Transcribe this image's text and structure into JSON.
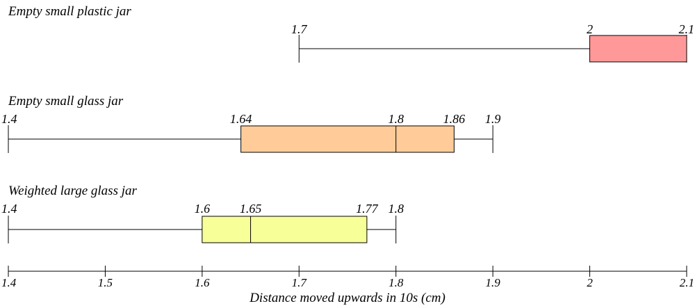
{
  "chart_data": {
    "type": "boxplot",
    "xlabel": "Distance moved upwards in 10s (cm)",
    "xlim": [
      1.4,
      2.1
    ],
    "xticks": [
      1.4,
      1.5,
      1.6,
      1.7,
      1.8,
      1.9,
      2,
      2.1
    ],
    "tick_labels": [
      "1.4",
      "1.5",
      "1.6",
      "1.7",
      "1.8",
      "1.9",
      "2",
      "2.1"
    ],
    "grid": false,
    "series": [
      {
        "name": "Empty small plastic jar",
        "min": 1.7,
        "q1": 2,
        "median": 2.1,
        "q3": 2.1,
        "max": 2.1,
        "labels": [
          "1.7",
          "2",
          "2.1"
        ],
        "color": "#ff9999"
      },
      {
        "name": "Empty small glass jar",
        "min": 1.4,
        "q1": 1.64,
        "median": 1.8,
        "q3": 1.86,
        "max": 1.9,
        "labels": [
          "1.4",
          "1.64",
          "1.8",
          "1.86",
          "1.9"
        ],
        "color": "#ffcc99"
      },
      {
        "name": "Weighted large glass jar",
        "min": 1.4,
        "q1": 1.6,
        "median": 1.65,
        "q3": 1.77,
        "max": 1.8,
        "labels": [
          "1.4",
          "1.6",
          "1.65",
          "1.77",
          "1.8"
        ],
        "color": "#f7ff99"
      }
    ]
  }
}
